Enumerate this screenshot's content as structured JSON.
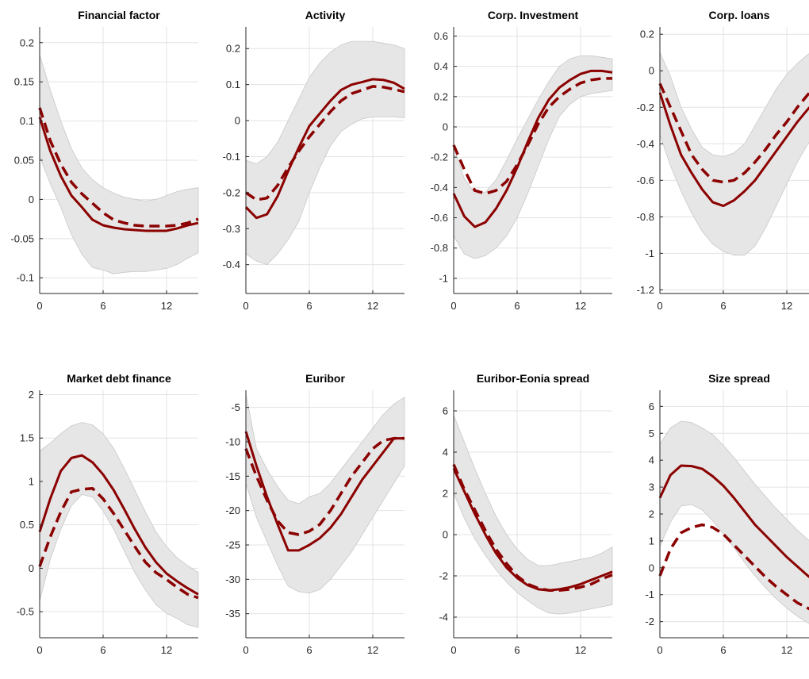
{
  "colors": {
    "line": "#8b0000",
    "band": "#e6e6e6",
    "band_edge": "#c8c8c8"
  },
  "chart_data": [
    {
      "type": "line",
      "title": "Financial factor",
      "xlim": [
        0,
        15
      ],
      "ylim": [
        -0.12,
        0.22
      ],
      "xticks": [
        "0",
        "6",
        "12"
      ],
      "xtick_values": [
        0,
        6,
        12
      ],
      "yticks": [
        "-0.1",
        "-0.05",
        "0",
        "0.05",
        "0.1",
        "0.15",
        "0.2"
      ],
      "ytick_values": [
        -0.1,
        -0.05,
        0,
        0.05,
        0.1,
        0.15,
        0.2
      ],
      "x": [
        0,
        1,
        2,
        3,
        4,
        5,
        6,
        7,
        8,
        9,
        10,
        11,
        12,
        13,
        14,
        15
      ],
      "solid": [
        0.105,
        0.062,
        0.03,
        0.005,
        -0.01,
        -0.026,
        -0.033,
        -0.036,
        -0.038,
        -0.039,
        -0.04,
        -0.04,
        -0.04,
        -0.037,
        -0.033,
        -0.03
      ],
      "dashed": [
        0.117,
        0.075,
        0.045,
        0.022,
        0.007,
        -0.005,
        -0.017,
        -0.026,
        -0.03,
        -0.033,
        -0.034,
        -0.034,
        -0.034,
        -0.033,
        -0.03,
        -0.025
      ],
      "upper": [
        0.185,
        0.14,
        0.1,
        0.065,
        0.04,
        0.025,
        0.015,
        0.008,
        0.003,
        0,
        -0.002,
        0,
        0.005,
        0.01,
        0.013,
        0.015
      ],
      "lower": [
        0.055,
        0.02,
        -0.01,
        -0.045,
        -0.07,
        -0.087,
        -0.09,
        -0.095,
        -0.093,
        -0.092,
        -0.092,
        -0.09,
        -0.088,
        -0.083,
        -0.075,
        -0.068
      ]
    },
    {
      "type": "line",
      "title": "Activity",
      "xlim": [
        0,
        15
      ],
      "ylim": [
        -0.48,
        0.26
      ],
      "xticks": [
        "0",
        "6",
        "12"
      ],
      "xtick_values": [
        0,
        6,
        12
      ],
      "yticks": [
        "-0.4",
        "-0.3",
        "-0.2",
        "-0.1",
        "0",
        "0.1",
        "0.2"
      ],
      "ytick_values": [
        -0.4,
        -0.3,
        -0.2,
        -0.1,
        0,
        0.1,
        0.2
      ],
      "x": [
        0,
        1,
        2,
        3,
        4,
        5,
        6,
        7,
        8,
        9,
        10,
        11,
        12,
        13,
        14,
        15
      ],
      "solid": [
        -0.24,
        -0.27,
        -0.26,
        -0.21,
        -0.14,
        -0.075,
        -0.015,
        0.02,
        0.055,
        0.085,
        0.1,
        0.107,
        0.115,
        0.113,
        0.105,
        0.088
      ],
      "dashed": [
        -0.2,
        -0.22,
        -0.215,
        -0.18,
        -0.13,
        -0.085,
        -0.045,
        -0.01,
        0.025,
        0.055,
        0.075,
        0.085,
        0.095,
        0.093,
        0.087,
        0.08
      ],
      "upper": [
        -0.11,
        -0.12,
        -0.1,
        -0.06,
        0.0,
        0.06,
        0.12,
        0.16,
        0.19,
        0.21,
        0.22,
        0.22,
        0.22,
        0.215,
        0.21,
        0.2
      ],
      "lower": [
        -0.37,
        -0.39,
        -0.4,
        -0.37,
        -0.33,
        -0.28,
        -0.2,
        -0.13,
        -0.07,
        -0.03,
        -0.01,
        0.005,
        0.01,
        0.01,
        0.01,
        0.008
      ]
    },
    {
      "type": "line",
      "title": "Corp. Investment",
      "xlim": [
        0,
        15
      ],
      "ylim": [
        -1.1,
        0.66
      ],
      "xticks": [
        "0",
        "6",
        "12"
      ],
      "xtick_values": [
        0,
        6,
        12
      ],
      "yticks": [
        "-1",
        "-0.8",
        "-0.6",
        "-0.4",
        "-0.2",
        "0",
        "0.2",
        "0.4",
        "0.6"
      ],
      "ytick_values": [
        -1,
        -0.8,
        -0.6,
        -0.4,
        -0.2,
        0,
        0.2,
        0.4,
        0.6
      ],
      "x": [
        0,
        1,
        2,
        3,
        4,
        5,
        6,
        7,
        8,
        9,
        10,
        11,
        12,
        13,
        14,
        15
      ],
      "solid": [
        -0.44,
        -0.59,
        -0.66,
        -0.63,
        -0.54,
        -0.42,
        -0.27,
        -0.1,
        0.06,
        0.18,
        0.26,
        0.31,
        0.35,
        0.37,
        0.37,
        0.36
      ],
      "dashed": [
        -0.12,
        -0.28,
        -0.42,
        -0.44,
        -0.42,
        -0.36,
        -0.25,
        -0.12,
        0.02,
        0.13,
        0.2,
        0.25,
        0.29,
        0.31,
        0.32,
        0.32
      ],
      "upper": [
        -0.13,
        -0.34,
        -0.44,
        -0.43,
        -0.35,
        -0.22,
        -0.08,
        0.05,
        0.18,
        0.3,
        0.4,
        0.45,
        0.47,
        0.47,
        0.46,
        0.45
      ],
      "lower": [
        -0.72,
        -0.84,
        -0.87,
        -0.85,
        -0.8,
        -0.72,
        -0.6,
        -0.44,
        -0.26,
        -0.08,
        0.07,
        0.15,
        0.2,
        0.22,
        0.23,
        0.24
      ]
    },
    {
      "type": "line",
      "title": "Corp. loans",
      "xlim": [
        0,
        15
      ],
      "ylim": [
        -1.22,
        0.24
      ],
      "xticks": [
        "0",
        "6",
        "12"
      ],
      "xtick_values": [
        0,
        6,
        12
      ],
      "yticks": [
        "-1.2",
        "-1",
        "-0.8",
        "-0.6",
        "-0.4",
        "-0.2",
        "0",
        "0.2"
      ],
      "ytick_values": [
        -1.2,
        -1,
        -0.8,
        -0.6,
        -0.4,
        -0.2,
        0,
        0.2
      ],
      "x": [
        0,
        1,
        2,
        3,
        4,
        5,
        6,
        7,
        8,
        9,
        10,
        11,
        12,
        13,
        14,
        15
      ],
      "solid": [
        -0.12,
        -0.3,
        -0.46,
        -0.56,
        -0.65,
        -0.72,
        -0.74,
        -0.71,
        -0.66,
        -0.6,
        -0.52,
        -0.44,
        -0.36,
        -0.28,
        -0.21,
        -0.15
      ],
      "dashed": [
        -0.07,
        -0.2,
        -0.33,
        -0.46,
        -0.54,
        -0.6,
        -0.61,
        -0.6,
        -0.56,
        -0.5,
        -0.43,
        -0.35,
        -0.28,
        -0.2,
        -0.13,
        -0.07
      ],
      "upper": [
        0.1,
        -0.03,
        -0.2,
        -0.32,
        -0.42,
        -0.46,
        -0.47,
        -0.45,
        -0.4,
        -0.3,
        -0.2,
        -0.1,
        -0.02,
        0.04,
        0.09,
        0.13
      ],
      "lower": [
        -0.35,
        -0.52,
        -0.66,
        -0.78,
        -0.88,
        -0.95,
        -0.99,
        -1.01,
        -1.01,
        -0.96,
        -0.86,
        -0.74,
        -0.62,
        -0.5,
        -0.4,
        -0.32
      ]
    },
    {
      "type": "line",
      "title": "Market debt finance",
      "xlim": [
        0,
        15
      ],
      "ylim": [
        -0.8,
        2.05
      ],
      "xticks": [
        "0",
        "6",
        "12"
      ],
      "xtick_values": [
        0,
        6,
        12
      ],
      "yticks": [
        "-0.5",
        "0",
        "0.5",
        "1",
        "1.5",
        "2"
      ],
      "ytick_values": [
        -0.5,
        0,
        0.5,
        1,
        1.5,
        2
      ],
      "x": [
        0,
        1,
        2,
        3,
        4,
        5,
        6,
        7,
        8,
        9,
        10,
        11,
        12,
        13,
        14,
        15
      ],
      "solid": [
        0.42,
        0.8,
        1.12,
        1.27,
        1.3,
        1.22,
        1.08,
        0.9,
        0.68,
        0.45,
        0.24,
        0.07,
        -0.06,
        -0.15,
        -0.23,
        -0.3
      ],
      "dashed": [
        0.02,
        0.36,
        0.65,
        0.88,
        0.91,
        0.92,
        0.8,
        0.63,
        0.44,
        0.25,
        0.07,
        -0.05,
        -0.13,
        -0.22,
        -0.3,
        -0.34
      ],
      "upper": [
        1.35,
        1.44,
        1.55,
        1.64,
        1.68,
        1.65,
        1.55,
        1.38,
        1.15,
        0.9,
        0.65,
        0.42,
        0.25,
        0.12,
        0.03,
        -0.05
      ],
      "lower": [
        -0.38,
        0.1,
        0.45,
        0.72,
        0.85,
        0.82,
        0.66,
        0.45,
        0.2,
        -0.05,
        -0.25,
        -0.42,
        -0.52,
        -0.58,
        -0.65,
        -0.68
      ]
    },
    {
      "type": "line",
      "title": "Euribor",
      "xlim": [
        0,
        15
      ],
      "ylim": [
        -38.5,
        -2.5
      ],
      "xticks": [
        "0",
        "6",
        "12"
      ],
      "xtick_values": [
        0,
        6,
        12
      ],
      "yticks": [
        "-35",
        "-30",
        "-25",
        "-20",
        "-15",
        "-10",
        "-5"
      ],
      "ytick_values": [
        -35,
        -30,
        -25,
        -20,
        -15,
        -10,
        -5
      ],
      "x": [
        0,
        1,
        2,
        3,
        4,
        5,
        6,
        7,
        8,
        9,
        10,
        11,
        12,
        13,
        14,
        15
      ],
      "solid": [
        -8.5,
        -13.5,
        -18,
        -22,
        -25.8,
        -25.8,
        -25,
        -24,
        -22.5,
        -20.5,
        -18,
        -15.5,
        -13.5,
        -11.5,
        -9.5,
        -9.5
      ],
      "dashed": [
        -11,
        -15,
        -18.5,
        -21.5,
        -23.2,
        -23.5,
        -23,
        -22,
        -20,
        -17.5,
        -15,
        -13,
        -11,
        -9.8,
        -9.5,
        -9.5
      ],
      "upper": [
        -3,
        -11,
        -14,
        -16.5,
        -18.5,
        -19,
        -18,
        -17.5,
        -16,
        -14,
        -12,
        -10,
        -8,
        -6,
        -4.5,
        -3.5
      ],
      "lower": [
        -16,
        -21,
        -24.5,
        -28,
        -31,
        -31.8,
        -32,
        -31.5,
        -30,
        -28,
        -26,
        -23.5,
        -21,
        -18.5,
        -16,
        -13.5
      ]
    },
    {
      "type": "line",
      "title": "Euribor-Eonia spread",
      "xlim": [
        0,
        15
      ],
      "ylim": [
        -5,
        7
      ],
      "xticks": [
        "0",
        "6",
        "12"
      ],
      "xtick_values": [
        0,
        6,
        12
      ],
      "yticks": [
        "-4",
        "-2",
        "0",
        "2",
        "4",
        "6"
      ],
      "ytick_values": [
        -4,
        -2,
        0,
        2,
        4,
        6
      ],
      "x": [
        0,
        1,
        2,
        3,
        4,
        5,
        6,
        7,
        8,
        9,
        10,
        11,
        12,
        13,
        14,
        15
      ],
      "solid": [
        3.2,
        2.1,
        1.0,
        0.0,
        -0.9,
        -1.6,
        -2.1,
        -2.45,
        -2.65,
        -2.7,
        -2.65,
        -2.55,
        -2.4,
        -2.2,
        -2.0,
        -1.8
      ],
      "dashed": [
        3.4,
        2.2,
        1.2,
        0.2,
        -0.7,
        -1.4,
        -2.0,
        -2.4,
        -2.6,
        -2.7,
        -2.7,
        -2.65,
        -2.55,
        -2.4,
        -2.15,
        -1.95
      ],
      "upper": [
        5.8,
        4.5,
        3.2,
        2.0,
        0.9,
        0.0,
        -0.7,
        -1.2,
        -1.5,
        -1.5,
        -1.4,
        -1.3,
        -1.2,
        -1.1,
        -0.9,
        -0.6
      ],
      "lower": [
        2.0,
        0.8,
        -0.2,
        -1.0,
        -1.7,
        -2.3,
        -2.8,
        -3.2,
        -3.55,
        -3.8,
        -3.85,
        -3.8,
        -3.7,
        -3.6,
        -3.5,
        -3.4
      ]
    },
    {
      "type": "line",
      "title": "Size spread",
      "xlim": [
        0,
        15
      ],
      "ylim": [
        -2.6,
        6.6
      ],
      "xticks": [
        "0",
        "6",
        "12"
      ],
      "xtick_values": [
        0,
        6,
        12
      ],
      "yticks": [
        "-2",
        "-1",
        "0",
        "1",
        "2",
        "3",
        "4",
        "5",
        "6"
      ],
      "ytick_values": [
        -2,
        -1,
        0,
        1,
        2,
        3,
        4,
        5,
        6
      ],
      "x": [
        0,
        1,
        2,
        3,
        4,
        5,
        6,
        7,
        8,
        9,
        10,
        11,
        12,
        13,
        14,
        15
      ],
      "solid": [
        2.6,
        3.45,
        3.8,
        3.78,
        3.68,
        3.4,
        3.05,
        2.6,
        2.1,
        1.6,
        1.2,
        0.8,
        0.4,
        0.05,
        -0.3,
        -0.6
      ],
      "dashed": [
        -0.3,
        0.7,
        1.3,
        1.5,
        1.6,
        1.5,
        1.25,
        0.85,
        0.45,
        0.05,
        -0.35,
        -0.7,
        -1.0,
        -1.3,
        -1.5,
        -1.7
      ],
      "upper": [
        4.6,
        5.2,
        5.45,
        5.4,
        5.2,
        4.95,
        4.55,
        4.1,
        3.6,
        3.1,
        2.65,
        2.2,
        1.8,
        1.4,
        1.05,
        0.75
      ],
      "lower": [
        0.8,
        1.7,
        2.3,
        2.35,
        2.15,
        1.75,
        1.25,
        0.75,
        0.2,
        -0.3,
        -0.75,
        -1.15,
        -1.5,
        -1.8,
        -2.05,
        -2.25
      ]
    }
  ]
}
